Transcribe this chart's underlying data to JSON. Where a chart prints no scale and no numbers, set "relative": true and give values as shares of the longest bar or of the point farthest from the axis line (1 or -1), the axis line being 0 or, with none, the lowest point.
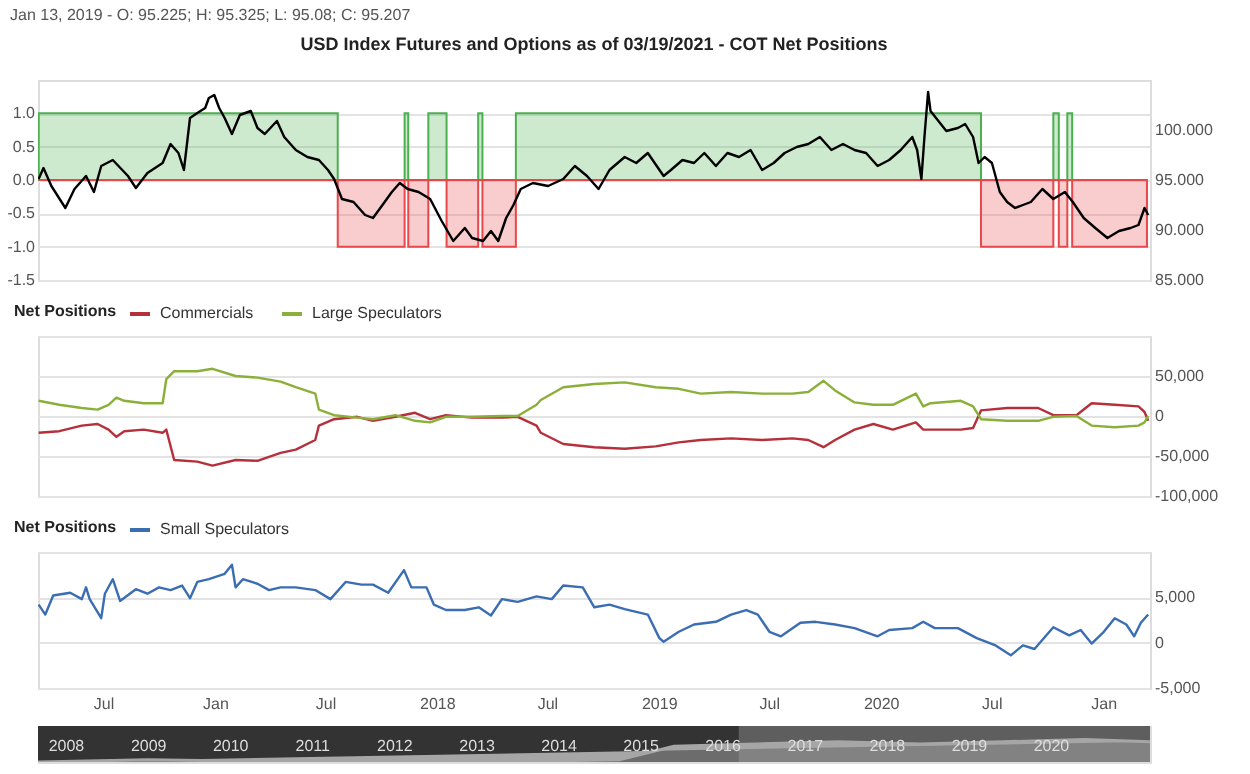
{
  "chart_data": [
    {
      "type": "line",
      "title": "USD Index Futures and Options as of 03/19/2021 - COT Net Positions",
      "annotations": [
        "Jan 13, 2019 - O: 95.225; H: 95.325; L: 95.08; C: 95.207"
      ],
      "series": [
        {
          "type": "area",
          "color": "#4caf50",
          "x": [
            "2016-03-17",
            "2017-07-22",
            "2017-07-22",
            "2017-11-09",
            "2017-11-09",
            "2017-11-15",
            "2017-11-15",
            "2017-12-18",
            "2017-12-18",
            "2018-01-17",
            "2018-01-17",
            "2018-03-10",
            "2018-03-10",
            "2018-03-17",
            "2018-03-17",
            "2018-05-11",
            "2018-05-11",
            "2020-06-14",
            "2020-06-14",
            "2020-10-11",
            "2020-10-11",
            "2020-10-20",
            "2020-10-20",
            "2020-11-03",
            "2020-11-03",
            "2020-11-11",
            "2020-11-11",
            "2021-03-14"
          ],
          "values": [
            1,
            1,
            0,
            0,
            1,
            1,
            0,
            0,
            1,
            1,
            0,
            0,
            1,
            1,
            0,
            0,
            1,
            1,
            0,
            0,
            1,
            1,
            0,
            0,
            1,
            1,
            0,
            0
          ]
        },
        {
          "type": "area",
          "color": "#e8484b",
          "x": [
            "2016-03-17",
            "2017-07-22",
            "2017-07-22",
            "2017-11-09",
            "2017-11-09",
            "2017-11-15",
            "2017-11-15",
            "2017-12-18",
            "2017-12-18",
            "2018-01-17",
            "2018-01-17",
            "2018-03-10",
            "2018-03-10",
            "2018-03-17",
            "2018-03-17",
            "2018-05-11",
            "2018-05-11",
            "2020-06-14",
            "2020-06-14",
            "2020-10-11",
            "2020-10-11",
            "2020-10-20",
            "2020-10-20",
            "2020-11-03",
            "2020-11-03",
            "2020-11-11",
            "2020-11-11",
            "2021-03-14"
          ],
          "values": [
            0,
            0,
            -1,
            -1,
            0,
            0,
            -1,
            -1,
            0,
            0,
            -1,
            -1,
            0,
            0,
            -1,
            -1,
            0,
            0,
            -1,
            -1,
            0,
            0,
            -1,
            -1,
            0,
            0,
            -1,
            -1
          ]
        },
        {
          "type": "line",
          "axis": "y2",
          "color": "#000000",
          "x": [
            "2016-03-17",
            "2016-03-25",
            "2016-04-07",
            "2016-04-30",
            "2016-05-15",
            "2016-06-03",
            "2016-06-16",
            "2016-06-28",
            "2016-07-17",
            "2016-08-11",
            "2016-08-24",
            "2016-09-12",
            "2016-10-07",
            "2016-10-20",
            "2016-11-02",
            "2016-11-11",
            "2016-11-21",
            "2016-12-03",
            "2016-12-16",
            "2016-12-22",
            "2016-12-31",
            "2017-01-08",
            "2017-01-17",
            "2017-01-29",
            "2017-02-11",
            "2017-03-01",
            "2017-03-12",
            "2017-03-24",
            "2017-04-13",
            "2017-04-25",
            "2017-05-14",
            "2017-06-02",
            "2017-06-21",
            "2017-07-06",
            "2017-07-16",
            "2017-07-29",
            "2017-08-17",
            "2017-09-05",
            "2017-09-18",
            "2017-09-30",
            "2017-10-19",
            "2017-11-01",
            "2017-11-14",
            "2017-12-02",
            "2017-12-21",
            "2018-01-09",
            "2018-01-28",
            "2018-02-16",
            "2018-02-28",
            "2018-03-18",
            "2018-03-31",
            "2018-04-12",
            "2018-04-25",
            "2018-05-07",
            "2018-05-19",
            "2018-06-08",
            "2018-07-03",
            "2018-07-28",
            "2018-08-16",
            "2018-09-05",
            "2018-09-24",
            "2018-10-12",
            "2018-11-06",
            "2018-11-25",
            "2018-12-14",
            "2019-01-09",
            "2019-01-21",
            "2019-02-09",
            "2019-02-28",
            "2019-03-17",
            "2019-04-05",
            "2019-04-24",
            "2019-05-13",
            "2019-06-01",
            "2019-06-20",
            "2019-07-09",
            "2019-07-27",
            "2019-08-16",
            "2019-09-04",
            "2019-09-23",
            "2019-10-12",
            "2019-10-31",
            "2019-11-19",
            "2019-12-08",
            "2019-12-27",
            "2020-01-15",
            "2020-02-03",
            "2020-02-22",
            "2020-03-01",
            "2020-03-08",
            "2020-03-13",
            "2020-03-19",
            "2020-03-23",
            "2020-04-05",
            "2020-04-18",
            "2020-05-07",
            "2020-05-19",
            "2020-06-01",
            "2020-06-10",
            "2020-06-20",
            "2020-07-02",
            "2020-07-15",
            "2020-07-27",
            "2020-08-09",
            "2020-08-22",
            "2020-09-04",
            "2020-09-23",
            "2020-10-11",
            "2020-10-30",
            "2020-11-12",
            "2020-11-30",
            "2020-12-19",
            "2021-01-08",
            "2021-01-27",
            "2021-02-15",
            "2021-02-28",
            "2021-03-10",
            "2021-03-16"
          ],
          "values": [
            95.1,
            96.2,
            94.4,
            92.2,
            94.1,
            95.4,
            93.8,
            96.4,
            97.0,
            95.4,
            94.2,
            95.7,
            96.7,
            98.6,
            97.7,
            96.0,
            101.2,
            101.7,
            102.2,
            103.2,
            103.5,
            102.2,
            101.2,
            99.6,
            101.5,
            101.9,
            100.2,
            99.6,
            100.9,
            99.3,
            98.0,
            97.3,
            97.0,
            96.0,
            95.1,
            93.1,
            92.8,
            91.5,
            91.2,
            92.2,
            93.8,
            94.7,
            94.1,
            93.8,
            93.1,
            90.9,
            88.9,
            90.2,
            89.2,
            88.9,
            89.9,
            88.9,
            91.2,
            92.5,
            94.1,
            94.7,
            94.4,
            95.1,
            96.4,
            95.4,
            94.1,
            96.0,
            97.3,
            96.7,
            97.7,
            95.4,
            96.0,
            97.0,
            96.7,
            97.7,
            96.4,
            97.7,
            97.3,
            98.0,
            96.0,
            96.7,
            97.7,
            98.3,
            98.6,
            99.3,
            98.0,
            98.6,
            98.0,
            97.7,
            96.4,
            97.0,
            98.0,
            99.3,
            98.0,
            95.1,
            99.3,
            103.8,
            101.9,
            100.9,
            99.9,
            100.2,
            100.6,
            99.3,
            96.7,
            97.3,
            96.7,
            93.8,
            92.8,
            92.2,
            92.5,
            92.8,
            94.1,
            93.1,
            93.8,
            92.8,
            91.2,
            90.2,
            89.2,
            89.9,
            90.2,
            90.5,
            92.2,
            91.5
          ]
        }
      ],
      "xlim": [
        "2016-03-16",
        "2021-03-19"
      ],
      "ylim": [
        -1.5,
        1.5
      ],
      "yticks": [
        -1.5,
        {
          "value": -1,
          "label": "-1.0"
        },
        -0.5,
        {
          "value": 0,
          "label": "0.0"
        },
        0.5,
        {
          "value": 1,
          "label": "1.0"
        }
      ],
      "y2lim": [
        85,
        105
      ],
      "y2ticks": [
        {
          "value": 85,
          "label": "85.000"
        },
        {
          "value": 90,
          "label": "90.000"
        },
        {
          "value": 95,
          "label": "95.000"
        },
        {
          "value": 100,
          "label": "100.000"
        }
      ],
      "grid": "y",
      "tick_labels": "y"
    },
    {
      "type": "line",
      "legend_title": "Net Positions",
      "legend": "top left",
      "x": [
        "2016-03-17",
        "2016-04-20",
        "2016-05-27",
        "2016-06-22",
        "2016-07-10",
        "2016-07-23",
        "2016-08-05",
        "2016-09-06",
        "2016-10-07",
        "2016-10-13",
        "2016-10-26",
        "2016-12-03",
        "2016-12-28",
        "2017-02-04",
        "2017-03-12",
        "2017-04-19",
        "2017-05-14",
        "2017-06-15",
        "2017-06-21",
        "2017-07-16",
        "2017-08-23",
        "2017-09-18",
        "2017-10-25",
        "2017-11-26",
        "2017-12-21",
        "2018-01-16",
        "2018-02-28",
        "2018-04-18",
        "2018-05-14",
        "2018-06-14",
        "2018-06-21",
        "2018-07-28",
        "2018-09-17",
        "2018-11-06",
        "2018-12-27",
        "2019-02-03",
        "2019-03-11",
        "2019-04-30",
        "2019-06-20",
        "2019-08-09",
        "2019-09-04",
        "2019-09-29",
        "2019-10-18",
        "2019-11-19",
        "2019-12-20",
        "2020-01-21",
        "2020-02-28",
        "2020-03-11",
        "2020-03-23",
        "2020-05-12",
        "2020-06-01",
        "2020-06-14",
        "2020-07-27",
        "2020-09-16",
        "2020-10-11",
        "2020-11-18",
        "2020-12-13",
        "2021-01-20",
        "2021-02-28",
        "2021-03-10",
        "2021-03-16"
      ],
      "series": [
        {
          "name": "Commercials",
          "color": "#b5303a",
          "values": [
            -21000,
            -19000,
            -12000,
            -10000,
            -17000,
            -26000,
            -19000,
            -17000,
            -21000,
            -17000,
            -55000,
            -57000,
            -62000,
            -55000,
            -56000,
            -46000,
            -42000,
            -30000,
            -12000,
            -4000,
            -1000,
            -6000,
            -1000,
            4000,
            -4000,
            1000,
            -2000,
            -2000,
            -1000,
            -12000,
            -21000,
            -35000,
            -39000,
            -41000,
            -38000,
            -33000,
            -30000,
            -28000,
            -30000,
            -28000,
            -30000,
            -39000,
            -30000,
            -17000,
            -10000,
            -17000,
            -8000,
            -17000,
            -17000,
            -17000,
            -15000,
            7000,
            10000,
            10000,
            1000,
            1000,
            16000,
            14000,
            12000,
            5000,
            -6000
          ]
        },
        {
          "name": "Large Speculators",
          "color": "#8ab03a",
          "values": [
            19000,
            14000,
            10000,
            8000,
            14000,
            23000,
            19000,
            16000,
            16000,
            46000,
            56000,
            56000,
            59000,
            50000,
            48000,
            43000,
            36000,
            28000,
            8000,
            1000,
            -2000,
            -4000,
            1000,
            -6000,
            -8000,
            -1000,
            -1000,
            0,
            0,
            14000,
            20000,
            36000,
            40000,
            42000,
            36000,
            34000,
            28000,
            30000,
            28000,
            28000,
            30000,
            44000,
            32000,
            17000,
            14000,
            14000,
            28000,
            12000,
            16000,
            19000,
            12000,
            -4000,
            -6000,
            -6000,
            -1000,
            0,
            -12000,
            -14000,
            -12000,
            -8000,
            0
          ]
        }
      ],
      "xlim": [
        "2016-03-16",
        "2021-03-19"
      ],
      "ylim": [
        -100000,
        100000
      ],
      "yticks": [
        {
          "value": -100000,
          "label": "-100,000"
        },
        {
          "value": -50000,
          "label": "-50,000"
        },
        0,
        {
          "value": 50000,
          "label": "50,000"
        },
        {
          "value": 100000,
          "label": null
        }
      ],
      "grid": "y",
      "tick_labels": "y"
    },
    {
      "type": "line",
      "legend_title": "Net Positions",
      "legend": "top left",
      "x": [
        "2016-03-17",
        "2016-03-28",
        "2016-04-10",
        "2016-05-08",
        "2016-05-27",
        "2016-06-03",
        "2016-06-09",
        "2016-06-28",
        "2016-07-04",
        "2016-07-17",
        "2016-07-29",
        "2016-08-24",
        "2016-09-12",
        "2016-10-01",
        "2016-10-20",
        "2016-11-08",
        "2016-11-21",
        "2016-12-03",
        "2016-12-22",
        "2017-01-17",
        "2017-01-29",
        "2017-02-04",
        "2017-02-16",
        "2017-03-12",
        "2017-03-31",
        "2017-04-19",
        "2017-05-14",
        "2017-06-15",
        "2017-07-10",
        "2017-08-04",
        "2017-08-30",
        "2017-09-18",
        "2017-10-13",
        "2017-11-08",
        "2017-11-20",
        "2017-12-15",
        "2017-12-27",
        "2018-01-16",
        "2018-02-16",
        "2018-03-11",
        "2018-03-31",
        "2018-04-18",
        "2018-05-14",
        "2018-06-14",
        "2018-07-09",
        "2018-07-28",
        "2018-08-29",
        "2018-09-17",
        "2018-10-12",
        "2018-11-06",
        "2018-12-14",
        "2019-01-02",
        "2019-01-09",
        "2019-02-03",
        "2019-02-28",
        "2019-04-05",
        "2019-04-30",
        "2019-05-25",
        "2019-06-13",
        "2019-07-02",
        "2019-07-21",
        "2019-08-22",
        "2019-09-16",
        "2019-10-18",
        "2019-11-19",
        "2019-12-27",
        "2020-01-15",
        "2020-02-22",
        "2020-03-11",
        "2020-03-30",
        "2020-05-07",
        "2020-06-07",
        "2020-07-08",
        "2020-08-02",
        "2020-08-22",
        "2020-09-10",
        "2020-10-11",
        "2020-11-06",
        "2020-11-25",
        "2020-12-13",
        "2021-01-02",
        "2021-01-20",
        "2021-02-08",
        "2021-02-21",
        "2021-03-04",
        "2021-03-16"
      ],
      "series": [
        {
          "name": "Small Speculators",
          "color": "#3b6db3",
          "values": [
            4200,
            3100,
            5200,
            5500,
            4800,
            6100,
            4800,
            2700,
            5400,
            7000,
            4600,
            5900,
            5400,
            6100,
            5800,
            6300,
            4900,
            6700,
            7000,
            7600,
            8600,
            6100,
            7000,
            6500,
            5800,
            6100,
            6100,
            5800,
            4800,
            6700,
            6400,
            6400,
            5500,
            8000,
            6100,
            6100,
            4200,
            3600,
            3600,
            3900,
            3000,
            4800,
            4500,
            5100,
            4800,
            6300,
            6100,
            3900,
            4200,
            3700,
            3100,
            500,
            100,
            1200,
            2000,
            2300,
            3100,
            3600,
            3100,
            1200,
            700,
            2200,
            2300,
            2000,
            1600,
            700,
            1400,
            1600,
            2300,
            1600,
            1600,
            500,
            -300,
            -1400,
            -300,
            -700,
            1700,
            800,
            1400,
            -100,
            1200,
            2700,
            2000,
            700,
            2200,
            3100
          ]
        }
      ],
      "xlim": [
        "2016-03-16",
        "2021-03-19"
      ],
      "xticks": [
        {
          "value": "2016-07-01",
          "label": "Jul"
        },
        {
          "value": "2017-01-01",
          "label": "Jan"
        },
        {
          "value": "2017-07-01",
          "label": "Jul"
        },
        {
          "value": "2018-01-01",
          "label": "2018"
        },
        {
          "value": "2018-07-01",
          "label": "Jul"
        },
        {
          "value": "2019-01-01",
          "label": "2019"
        },
        {
          "value": "2019-07-01",
          "label": "Jul"
        },
        {
          "value": "2020-01-01",
          "label": "2020"
        },
        {
          "value": "2020-07-01",
          "label": "Jul"
        },
        {
          "value": "2021-01-01",
          "label": "Jan"
        }
      ],
      "ylim": [
        -5000,
        10000
      ],
      "yticks": [
        {
          "value": -5000,
          "label": "-5,000"
        },
        0,
        {
          "value": 5000,
          "label": "5,000"
        },
        {
          "value": 10000,
          "label": null
        }
      ],
      "grid": "y"
    },
    {
      "type": "area",
      "relative": true,
      "x": [
        "2007-09-01",
        "2009-01-01",
        "2011-01-01",
        "2013-01-01",
        "2014-10-01",
        "2015-06-01",
        "2016-06-01",
        "2017-06-01",
        "2018-06-01",
        "2019-06-01",
        "2020-06-01",
        "2021-03-19"
      ],
      "series": [
        {
          "color": "#a6a6a6",
          "values": [
            0,
            0.1,
            0,
            0,
            0.1,
            0.7,
            0.8,
            0.9,
            0.8,
            0.9,
            1,
            0.9
          ]
        }
      ],
      "bands": [
        {
          "axis": "x",
          "from": "2007-09-01",
          "to": "2016-03-16",
          "color": "#333333"
        },
        {
          "axis": "x",
          "from": "2016-03-16",
          "to": "2021-03-19",
          "color": "#5e5e5e"
        }
      ],
      "xlim": [
        "2007-09-01",
        "2021-03-19"
      ],
      "xticks": [
        {
          "value": "2008-01-01",
          "label": "2008"
        },
        {
          "value": "2009-01-01",
          "label": "2009"
        },
        {
          "value": "2010-01-01",
          "label": "2010"
        },
        {
          "value": "2011-01-01",
          "label": "2011"
        },
        {
          "value": "2012-01-01",
          "label": "2012"
        },
        {
          "value": "2013-01-01",
          "label": "2013"
        },
        {
          "value": "2014-01-01",
          "label": "2014"
        },
        {
          "value": "2015-01-01",
          "label": "2015"
        },
        {
          "value": "2016-01-01",
          "label": "2016"
        },
        {
          "value": "2017-01-01",
          "label": "2017"
        },
        {
          "value": "2018-01-01",
          "label": "2018"
        },
        {
          "value": "2019-01-01",
          "label": "2019"
        },
        {
          "value": "2020-01-01",
          "label": "2020"
        }
      ],
      "tick_labels": "x"
    }
  ]
}
